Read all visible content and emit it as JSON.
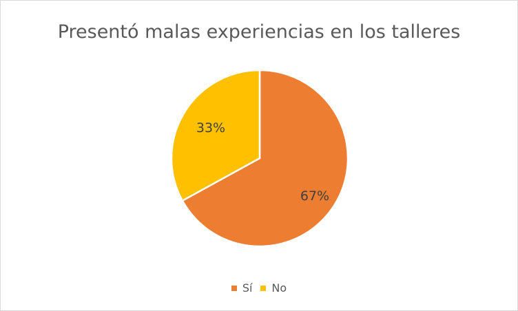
{
  "chart_data": {
    "type": "pie",
    "title": "Presentó malas experiencias en los talleres",
    "categories": [
      "Sí",
      "No"
    ],
    "values": [
      67,
      33
    ],
    "data_labels": [
      "67%",
      "33%"
    ],
    "colors": [
      "#ED7D31",
      "#FFC000"
    ],
    "legend_position": "bottom"
  }
}
